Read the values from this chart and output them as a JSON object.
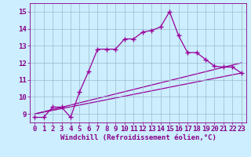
{
  "xlabel": "Windchill (Refroidissement éolien,°C)",
  "bg_color": "#cceeff",
  "line_color": "#990099",
  "xlim": [
    -0.5,
    23.5
  ],
  "ylim": [
    8.5,
    15.5
  ],
  "xticks": [
    0,
    1,
    2,
    3,
    4,
    5,
    6,
    7,
    8,
    9,
    10,
    11,
    12,
    13,
    14,
    15,
    16,
    17,
    18,
    19,
    20,
    21,
    22,
    23
  ],
  "yticks": [
    9,
    10,
    11,
    12,
    13,
    14,
    15
  ],
  "line1_x": [
    0,
    1,
    2,
    3,
    4,
    5,
    6,
    7,
    8,
    9,
    10,
    11,
    12,
    13,
    14,
    15,
    16,
    17,
    18,
    19,
    20,
    21,
    22,
    23
  ],
  "line1_y": [
    8.8,
    8.8,
    9.4,
    9.4,
    8.8,
    10.3,
    11.5,
    12.8,
    12.8,
    12.8,
    13.4,
    13.4,
    13.8,
    13.9,
    14.1,
    15.0,
    13.6,
    12.6,
    12.6,
    12.2,
    11.8,
    11.75,
    11.75,
    11.4
  ],
  "line2_x": [
    0,
    23
  ],
  "line2_y": [
    9.0,
    12.0
  ],
  "line3_x": [
    0,
    23
  ],
  "line3_y": [
    9.0,
    11.4
  ],
  "grid_color": "#99bbcc",
  "font_color": "#880088",
  "font_size": 6.5
}
